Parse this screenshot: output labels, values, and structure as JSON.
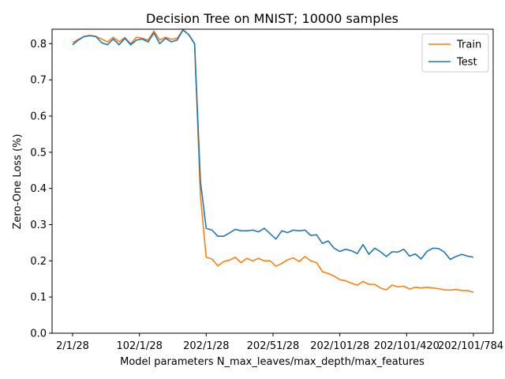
{
  "chart_data": {
    "type": "line",
    "title": "Decision Tree on MNIST; 10000 samples",
    "xlabel": "Model parameters N_max_leaves/max_depth/max_features",
    "ylabel": "Zero-One Loss (%)",
    "ylim": [
      0.0,
      0.84
    ],
    "yticks": [
      0.0,
      0.1,
      0.2,
      0.3,
      0.4,
      0.5,
      0.6,
      0.7,
      0.8
    ],
    "xtick_labels": [
      "2/1/28",
      "102/1/28",
      "202/1/28",
      "202/51/28",
      "202/101/28",
      "202/101/420",
      "202/101/784"
    ],
    "legend_position": "upper right",
    "grid": false,
    "series": [
      {
        "name": "Train",
        "color": "#ff7f0e",
        "values": [
          0.803,
          0.812,
          0.82,
          0.823,
          0.82,
          0.813,
          0.805,
          0.818,
          0.805,
          0.817,
          0.8,
          0.818,
          0.815,
          0.81,
          0.835,
          0.81,
          0.818,
          0.812,
          0.815,
          0.838,
          0.825,
          0.8,
          0.38,
          0.21,
          0.205,
          0.186,
          0.198,
          0.202,
          0.21,
          0.195,
          0.207,
          0.2,
          0.207,
          0.2,
          0.2,
          0.185,
          0.193,
          0.203,
          0.208,
          0.198,
          0.212,
          0.2,
          0.195,
          0.17,
          0.165,
          0.158,
          0.148,
          0.145,
          0.138,
          0.133,
          0.143,
          0.135,
          0.135,
          0.125,
          0.12,
          0.133,
          0.128,
          0.13,
          0.122,
          0.127,
          0.125,
          0.127,
          0.125,
          0.123,
          0.12,
          0.119,
          0.121,
          0.118,
          0.118,
          0.113
        ]
      },
      {
        "name": "Test",
        "color": "#1f77b4",
        "values": [
          0.797,
          0.81,
          0.82,
          0.822,
          0.82,
          0.803,
          0.797,
          0.813,
          0.797,
          0.815,
          0.797,
          0.81,
          0.813,
          0.805,
          0.83,
          0.8,
          0.815,
          0.805,
          0.81,
          0.838,
          0.825,
          0.8,
          0.42,
          0.29,
          0.285,
          0.268,
          0.268,
          0.277,
          0.287,
          0.283,
          0.283,
          0.285,
          0.28,
          0.29,
          0.275,
          0.26,
          0.283,
          0.278,
          0.285,
          0.283,
          0.285,
          0.27,
          0.272,
          0.248,
          0.255,
          0.235,
          0.226,
          0.232,
          0.228,
          0.22,
          0.245,
          0.218,
          0.235,
          0.225,
          0.212,
          0.225,
          0.224,
          0.232,
          0.213,
          0.219,
          0.205,
          0.226,
          0.235,
          0.234,
          0.224,
          0.204,
          0.212,
          0.218,
          0.213,
          0.21
        ]
      }
    ]
  }
}
